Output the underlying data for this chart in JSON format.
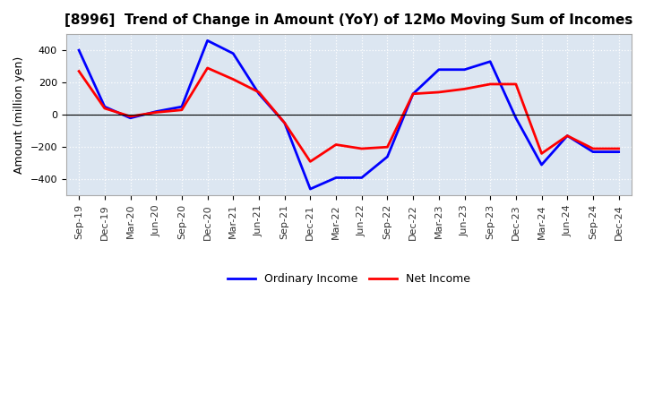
{
  "title": "[8996]  Trend of Change in Amount (YoY) of 12Mo Moving Sum of Incomes",
  "ylabel": "Amount (million yen)",
  "x_labels": [
    "Sep-19",
    "Dec-19",
    "Mar-20",
    "Jun-20",
    "Sep-20",
    "Dec-20",
    "Mar-21",
    "Jun-21",
    "Sep-21",
    "Dec-21",
    "Mar-22",
    "Jun-22",
    "Sep-22",
    "Dec-22",
    "Mar-23",
    "Jun-23",
    "Sep-23",
    "Dec-23",
    "Mar-24",
    "Jun-24",
    "Sep-24",
    "Dec-24"
  ],
  "ordinary_income": [
    400,
    50,
    -20,
    20,
    50,
    460,
    380,
    130,
    -50,
    -460,
    -390,
    -390,
    -260,
    130,
    280,
    280,
    330,
    -20,
    -310,
    -130,
    -230,
    -230
  ],
  "net_income": [
    270,
    40,
    -10,
    15,
    30,
    290,
    220,
    140,
    -50,
    -290,
    -185,
    -210,
    -200,
    130,
    140,
    160,
    190,
    190,
    -240,
    -130,
    -210,
    -210
  ],
  "ordinary_income_color": "#0000ff",
  "net_income_color": "#ff0000",
  "linewidth": 2.0,
  "ylim": [
    -500,
    500
  ],
  "yticks": [
    -400,
    -200,
    0,
    200,
    400
  ],
  "figure_bg_color": "#ffffff",
  "plot_bg_color": "#dce6f1",
  "grid_color": "#ffffff",
  "spine_color": "#aaaaaa",
  "legend_labels": [
    "Ordinary Income",
    "Net Income"
  ],
  "title_fontsize": 11,
  "axis_fontsize": 9,
  "tick_fontsize": 8
}
